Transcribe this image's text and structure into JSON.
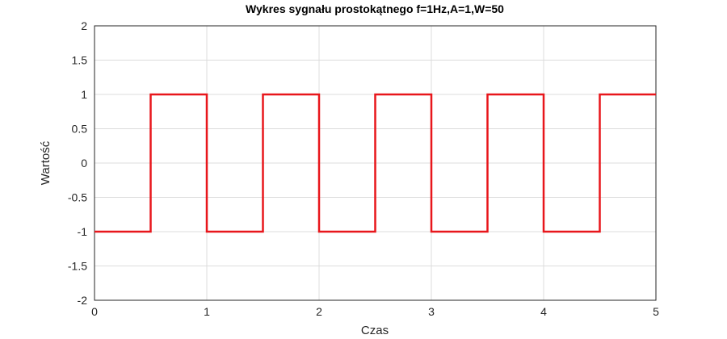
{
  "chart_data": {
    "type": "line",
    "title": "Wykres sygnału prostokątnego f=1Hz,A=1,W=50",
    "xlabel": "Czas",
    "ylabel": "Wartość",
    "xlim": [
      0,
      5
    ],
    "ylim": [
      -2,
      2
    ],
    "xticks": [
      0,
      1,
      2,
      3,
      4,
      5
    ],
    "xtick_labels": [
      "0",
      "1",
      "2",
      "3",
      "4",
      "5"
    ],
    "yticks": [
      2,
      1.5,
      1,
      0.5,
      0,
      -0.5,
      -1,
      -1.5,
      -2
    ],
    "ytick_labels": [
      "2",
      "1.5",
      "1",
      "0.5",
      "0",
      "-0.5",
      "-1",
      "-1.5",
      "-2"
    ],
    "grid": true,
    "series": [
      {
        "color": "#e8161b",
        "x": [
          0,
          0.5,
          0.5,
          1,
          1,
          1.5,
          1.5,
          2,
          2,
          2.5,
          2.5,
          3,
          3,
          3.5,
          3.5,
          4,
          4,
          4.5,
          4.5,
          5
        ],
        "y": [
          -1,
          -1,
          1,
          1,
          -1,
          -1,
          1,
          1,
          -1,
          -1,
          1,
          1,
          -1,
          -1,
          1,
          1,
          -1,
          -1,
          1,
          1
        ]
      }
    ]
  }
}
